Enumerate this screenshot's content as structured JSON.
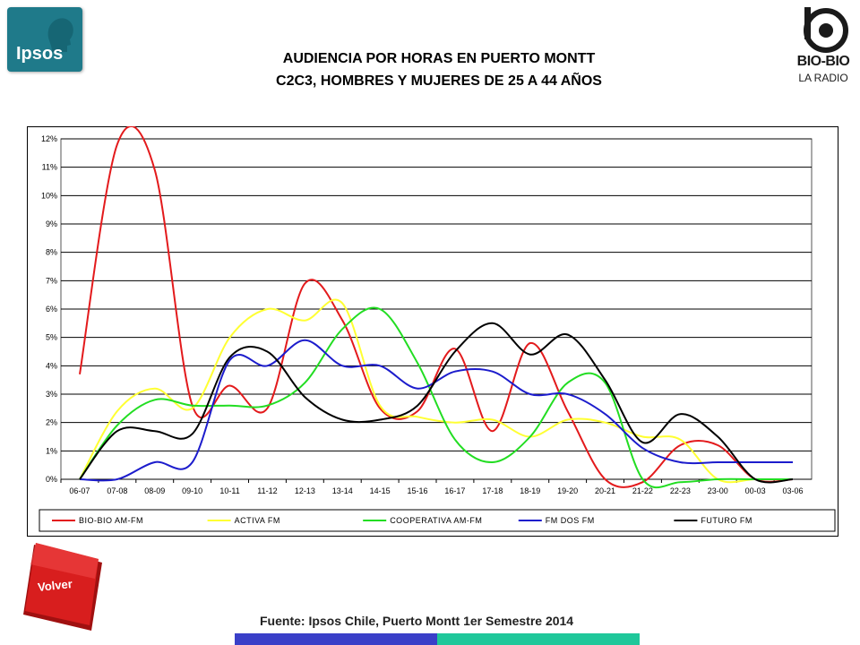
{
  "header": {
    "title_line1": "AUDIENCIA POR HORAS EN PUERTO MONTT",
    "title_line2": "C2C3, HOMBRES Y MUJERES DE 25 A 44 AÑOS",
    "logo_left": "Ipsos",
    "logo_right_name": "BIO-BIO",
    "logo_right_sub": "LA RADIO"
  },
  "footer": {
    "back_button": "Volver",
    "source": "Fuente: Ipsos Chile, Puerto Montt 1er Semestre 2014"
  },
  "colors": {
    "ipsos_teal": "#1f7a8a",
    "volver_red": "#d81e1e",
    "footer_blue": "#3a3fc8",
    "footer_teal": "#1fc79a"
  },
  "chart_data": {
    "type": "line",
    "title": "",
    "xlabel": "",
    "ylabel": "",
    "ylim": [
      0,
      12
    ],
    "y_unit": "%",
    "y_ticks": [
      "0%",
      "1%",
      "2%",
      "3%",
      "4%",
      "5%",
      "6%",
      "7%",
      "8%",
      "9%",
      "10%",
      "11%",
      "12%"
    ],
    "grid": true,
    "legend_position": "bottom",
    "categories": [
      "06-07",
      "07-08",
      "08-09",
      "09-10",
      "10-11",
      "11-12",
      "12-13",
      "13-14",
      "14-15",
      "15-16",
      "16-17",
      "17-18",
      "18-19",
      "19-20",
      "20-21",
      "21-22",
      "22-23",
      "23-00",
      "00-03",
      "03-06"
    ],
    "series": [
      {
        "name": "BIO-BIO AM-FM",
        "color": "#e31a1c",
        "values": [
          3.7,
          11.8,
          10.9,
          2.6,
          3.3,
          2.5,
          6.9,
          5.6,
          2.5,
          2.4,
          4.6,
          1.7,
          4.8,
          2.4,
          0.0,
          -0.1,
          1.2,
          1.2,
          0.0,
          0.0
        ]
      },
      {
        "name": "ACTIVA FM",
        "color": "#ffff33",
        "values": [
          0.0,
          2.4,
          3.2,
          2.5,
          5.0,
          6.0,
          5.6,
          6.2,
          2.6,
          2.2,
          2.0,
          2.1,
          1.5,
          2.1,
          2.0,
          1.5,
          1.4,
          0.0,
          0.0,
          0.0
        ]
      },
      {
        "name": "COOPERATIVA AM-FM",
        "color": "#22dd22",
        "values": [
          0.0,
          1.9,
          2.8,
          2.6,
          2.6,
          2.6,
          3.4,
          5.3,
          6.0,
          4.1,
          1.4,
          0.6,
          1.5,
          3.4,
          3.4,
          0.0,
          -0.1,
          0.0,
          0.0,
          0.0
        ]
      },
      {
        "name": "FM DOS FM",
        "color": "#1c1ccc",
        "values": [
          0.0,
          0.0,
          0.6,
          0.6,
          4.2,
          4.0,
          4.9,
          4.0,
          4.0,
          3.2,
          3.8,
          3.8,
          3.0,
          3.0,
          2.3,
          1.1,
          0.6,
          0.6,
          0.6,
          0.6
        ]
      },
      {
        "name": "FUTURO FM",
        "color": "#000000",
        "values": [
          0.0,
          1.7,
          1.7,
          1.6,
          4.3,
          4.5,
          2.9,
          2.1,
          2.1,
          2.6,
          4.5,
          5.5,
          4.4,
          5.1,
          3.5,
          1.3,
          2.3,
          1.5,
          0.0,
          0.0
        ]
      }
    ]
  }
}
